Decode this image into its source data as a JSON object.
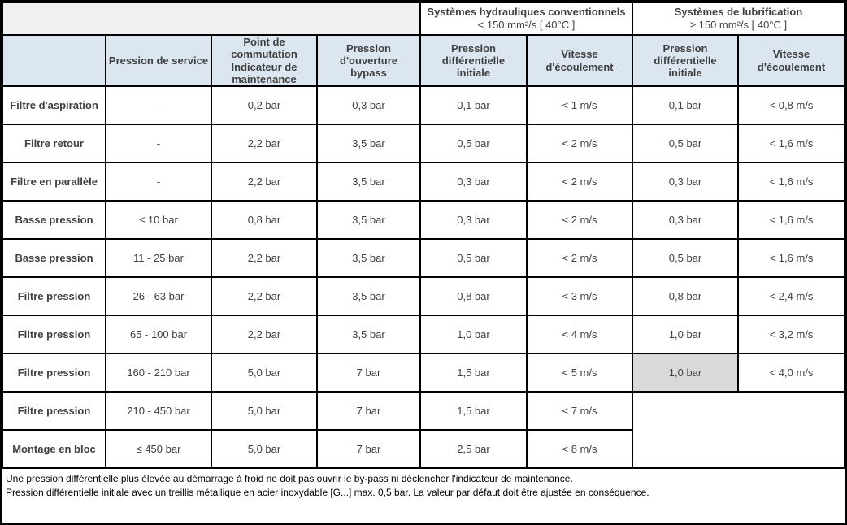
{
  "header": {
    "hydraulic": {
      "title": "Systèmes hydrauliques conventionnels",
      "subtitle": "< 150 mm²/s [ 40°C ]"
    },
    "lubrication": {
      "title": "Systèmes de lubrification",
      "subtitle": "≥ 150 mm²/s [ 40°C ]"
    },
    "columns": [
      "",
      "Pression de service",
      "Point de\ncommutation\nIndicateur de\nmaintenance",
      "Pression d'ouverture\nbypass",
      "Pression différentielle\ninitiale",
      "Vitesse d'écoulement",
      "Pression différentielle\ninitiale",
      "Vitesse d'écoulement"
    ]
  },
  "rows": [
    {
      "label": "Filtre d'aspiration",
      "pression_service": "-",
      "point_commutation": "0,2 bar",
      "ouverture_bypass": "0,3 bar",
      "hydraulique": {
        "pression_differentielle": "0,1 bar",
        "vitesse_ecoulement": "< 1 m/s"
      },
      "lubrification": {
        "pression_differentielle": "0,1 bar",
        "vitesse_ecoulement": "< 0,8 m/s"
      }
    },
    {
      "label": "Filtre retour",
      "pression_service": "-",
      "point_commutation": "2,2 bar",
      "ouverture_bypass": "3,5 bar",
      "hydraulique": {
        "pression_differentielle": "0,5 bar",
        "vitesse_ecoulement": "< 2 m/s"
      },
      "lubrification": {
        "pression_differentielle": "0,5 bar",
        "vitesse_ecoulement": "< 1,6 m/s"
      }
    },
    {
      "label": "Filtre en parallèle",
      "pression_service": "-",
      "point_commutation": "2,2 bar",
      "ouverture_bypass": "3,5 bar",
      "hydraulique": {
        "pression_differentielle": "0,3 bar",
        "vitesse_ecoulement": "< 2 m/s"
      },
      "lubrification": {
        "pression_differentielle": "0,3 bar",
        "vitesse_ecoulement": "< 1,6 m/s"
      }
    },
    {
      "label": "Basse pression",
      "pression_service": "≤ 10 bar",
      "point_commutation": "0,8 bar",
      "ouverture_bypass": "3,5 bar",
      "hydraulique": {
        "pression_differentielle": "0,3 bar",
        "vitesse_ecoulement": "< 2 m/s"
      },
      "lubrification": {
        "pression_differentielle": "0,3 bar",
        "vitesse_ecoulement": "< 1,6 m/s"
      }
    },
    {
      "label": "Basse pression",
      "pression_service": "11 - 25 bar",
      "point_commutation": "2,2 bar",
      "ouverture_bypass": "3,5 bar",
      "hydraulique": {
        "pression_differentielle": "0,5 bar",
        "vitesse_ecoulement": "< 2 m/s"
      },
      "lubrification": {
        "pression_differentielle": "0,5 bar",
        "vitesse_ecoulement": "< 1,6 m/s"
      }
    },
    {
      "label": "Filtre pression",
      "pression_service": "26 - 63 bar",
      "point_commutation": "2,2 bar",
      "ouverture_bypass": "3,5 bar",
      "hydraulique": {
        "pression_differentielle": "0,8 bar",
        "vitesse_ecoulement": "< 3 m/s"
      },
      "lubrification": {
        "pression_differentielle": "0,8 bar",
        "vitesse_ecoulement": "< 2,4 m/s"
      }
    },
    {
      "label": "Filtre pression",
      "pression_service": "65 - 100 bar",
      "point_commutation": "2,2 bar",
      "ouverture_bypass": "3,5 bar",
      "hydraulique": {
        "pression_differentielle": "1,0 bar",
        "vitesse_ecoulement": "< 4 m/s"
      },
      "lubrification": {
        "pression_differentielle": "1,0 bar",
        "vitesse_ecoulement": "< 3,2 m/s"
      }
    },
    {
      "label": "Filtre pression",
      "pression_service": "160 - 210 bar",
      "point_commutation": "5,0 bar",
      "ouverture_bypass": "7 bar",
      "hydraulique": {
        "pression_differentielle": "1,5 bar",
        "vitesse_ecoulement": "< 5 m/s"
      },
      "lubrification": {
        "pression_differentielle": "1,0 bar",
        "vitesse_ecoulement": "< 4,0 m/s",
        "highlight": true
      }
    },
    {
      "label": "Filtre pression",
      "pression_service": "210 - 450 bar",
      "point_commutation": "5,0 bar",
      "ouverture_bypass": "7 bar",
      "hydraulique": {
        "pression_differentielle": "1,5 bar",
        "vitesse_ecoulement": "< 7 m/s"
      },
      "lubrification": null,
      "lubrification_merged_empty": true
    },
    {
      "label": "Montage en bloc",
      "pression_service": "≤ 450 bar",
      "point_commutation": "5,0 bar",
      "ouverture_bypass": "7 bar",
      "hydraulique": {
        "pression_differentielle": "2,5 bar",
        "vitesse_ecoulement": "< 8 m/s"
      },
      "lubrification": null
    }
  ],
  "footnotes": [
    "Une pression différentielle plus élevée au démarrage à froid ne doit pas ouvrir le by-pass ni déclencher l'indicateur de maintenance.",
    "Pression différentielle initiale avec un treillis métallique en acier inoxydable [G...] max. 0,5 bar. La valeur par défaut doit être ajustée en conséquence."
  ],
  "colors": {
    "header_blue": "#dce6f1",
    "band_gray": "#f0f0f0",
    "highlight_gray": "#d9d9d9",
    "border": "#000000"
  }
}
